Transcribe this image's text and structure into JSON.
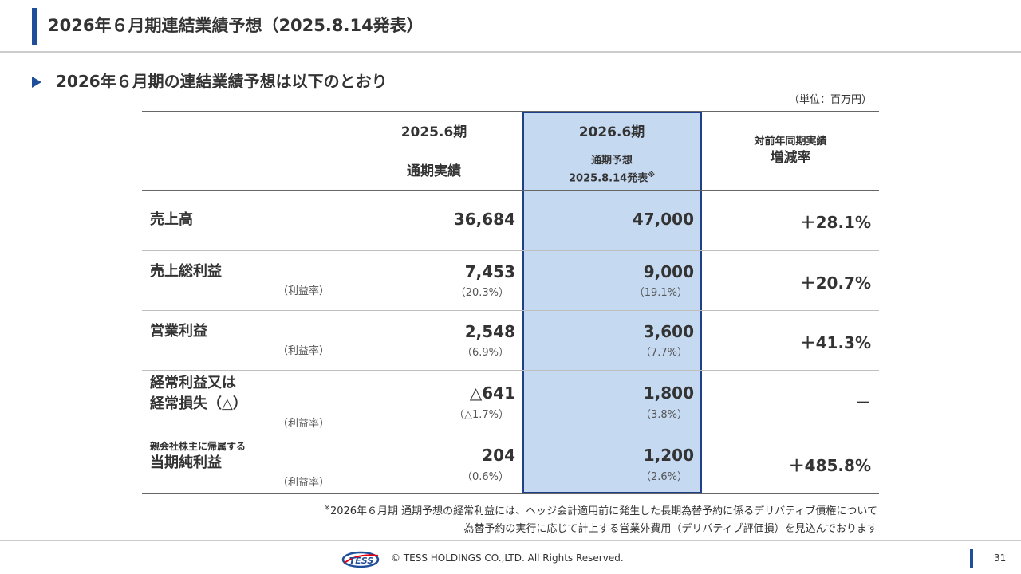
{
  "header": {
    "title": "2026年６月期連結業績予想（2025.8.14発表）"
  },
  "section": {
    "title": "2026年６月期の連結業績予想は以下のとおり",
    "unit": "（単位：百万円）"
  },
  "table": {
    "col_prev": {
      "period": "2025.6期",
      "sub": "通期実績"
    },
    "col_fcst": {
      "period": "2026.6期",
      "sub1": "通期予想",
      "sub2": "2025.8.14発表",
      "mark": "※"
    },
    "col_change": {
      "line1": "対前年同期実績",
      "line2": "増減率"
    },
    "rows": [
      {
        "label": "売上高",
        "prev": "36,684",
        "fcst": "47,000",
        "change": "＋28.1%"
      },
      {
        "label": "売上総利益",
        "margin_label": "（利益率）",
        "prev": "7,453",
        "prev_pct": "（20.3%）",
        "fcst": "9,000",
        "fcst_pct": "（19.1%）",
        "change": "＋20.7%"
      },
      {
        "label": "営業利益",
        "margin_label": "（利益率）",
        "prev": "2,548",
        "prev_pct": "（6.9%）",
        "fcst": "3,600",
        "fcst_pct": "（7.7%）",
        "change": "＋41.3%"
      },
      {
        "label_line1": "経常利益又は",
        "label_line2": "経常損失（△）",
        "margin_label": "（利益率）",
        "prev": "△641",
        "prev_pct": "（△1.7%）",
        "fcst": "1,800",
        "fcst_pct": "（3.8%）",
        "change": "－"
      },
      {
        "sublabel": "親会社株主に帰属する",
        "label": "当期純利益",
        "margin_label": "（利益率）",
        "prev": "204",
        "prev_pct": "（0.6%）",
        "fcst": "1,200",
        "fcst_pct": "（2.6%）",
        "change": "＋485.8%"
      }
    ]
  },
  "footnote": {
    "mark": "※",
    "line1": "2026年６月期 通期予想の経常利益には、ヘッジ会計適用前に発生した長期為替予約に係るデリバティブ債権について",
    "line2": "為替予約の実行に応じて計上する営業外費用（デリバティブ評価損）を見込んでおります"
  },
  "footer": {
    "logo_text": "TESS",
    "copyright": "© TESS HOLDINGS CO.,LTD. All Rights Reserved.",
    "page": "31"
  },
  "colors": {
    "accent": "#1f4e9a",
    "highlight_fill": "#c5d9f1",
    "highlight_border": "#1f3f8a"
  }
}
